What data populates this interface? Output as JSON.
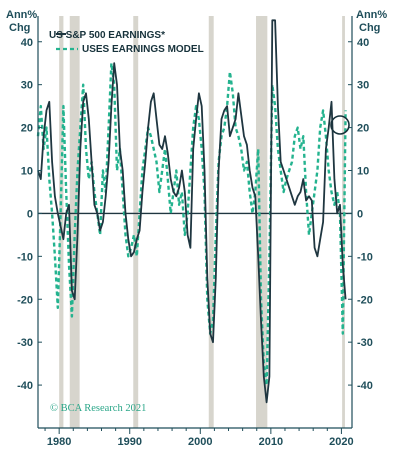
{
  "chart_data": {
    "type": "line",
    "title": "",
    "units_label": [
      "Ann%",
      "Chg"
    ],
    "xlabel": "",
    "ylabel": "",
    "xlim": [
      1977,
      2021.5
    ],
    "ylim": [
      -50,
      46
    ],
    "yticks": [
      40,
      30,
      20,
      10,
      0,
      -10,
      -20,
      -30,
      -40
    ],
    "xticks": [
      1980,
      1990,
      2000,
      2010,
      2020
    ],
    "recessions": [
      [
        1980.0,
        1980.6
      ],
      [
        1981.5,
        1982.9
      ],
      [
        1990.5,
        1991.2
      ],
      [
        2001.2,
        2001.9
      ],
      [
        2007.9,
        2009.5
      ],
      [
        2020.1,
        2020.5
      ]
    ],
    "legend": [
      "US S&P 500 EARNINGS*",
      "USES EARNINGS MODEL"
    ],
    "credit": "© BCA Research 2021",
    "colors": {
      "actual": "#1f3640",
      "model": "#24b38f",
      "recession": "#d7d5cd",
      "axis": "#1f4e5a",
      "zero_line": "#1f3640"
    },
    "series": [
      {
        "name": "US S&P 500 EARNINGS*",
        "style": "solid",
        "x": [
          1977.0,
          1977.4,
          1977.8,
          1978.2,
          1978.6,
          1979.0,
          1979.4,
          1979.8,
          1980.2,
          1980.6,
          1981.0,
          1981.4,
          1981.8,
          1982.2,
          1982.6,
          1983.0,
          1983.4,
          1983.8,
          1984.2,
          1984.6,
          1985.0,
          1985.4,
          1985.8,
          1986.2,
          1986.6,
          1987.0,
          1987.4,
          1987.8,
          1988.2,
          1988.6,
          1989.0,
          1989.4,
          1989.8,
          1990.2,
          1990.6,
          1991.0,
          1991.4,
          1991.8,
          1992.2,
          1992.6,
          1993.0,
          1993.4,
          1993.8,
          1994.2,
          1994.6,
          1995.0,
          1995.4,
          1995.8,
          1996.2,
          1996.6,
          1997.0,
          1997.4,
          1997.8,
          1998.2,
          1998.6,
          1999.0,
          1999.4,
          1999.8,
          2000.2,
          2000.6,
          2001.0,
          2001.4,
          2001.8,
          2002.2,
          2002.6,
          2003.0,
          2003.4,
          2003.8,
          2004.2,
          2004.6,
          2005.0,
          2005.4,
          2005.8,
          2006.2,
          2006.6,
          2007.0,
          2007.4,
          2007.8,
          2008.2,
          2008.6,
          2009.0,
          2009.4,
          2009.8,
          2010.2,
          2010.6,
          2011.0,
          2011.4,
          2011.8,
          2012.2,
          2012.6,
          2013.0,
          2013.4,
          2013.8,
          2014.2,
          2014.6,
          2015.0,
          2015.4,
          2015.8,
          2016.2,
          2016.6,
          2017.0,
          2017.4,
          2017.8,
          2018.2,
          2018.6,
          2019.0,
          2019.4,
          2019.8,
          2020.2,
          2020.6
        ],
        "y": [
          10,
          8,
          18,
          24,
          26,
          12,
          4,
          0,
          -3,
          -6,
          0,
          2,
          -18,
          -20,
          -5,
          15,
          26,
          28,
          22,
          12,
          2,
          0,
          -4,
          -2,
          4,
          12,
          25,
          35,
          30,
          15,
          10,
          0,
          -6,
          -10,
          -9,
          -6,
          -4,
          5,
          12,
          20,
          26,
          28,
          22,
          16,
          15,
          18,
          14,
          8,
          5,
          4,
          6,
          10,
          5,
          -5,
          -8,
          15,
          22,
          28,
          25,
          10,
          -15,
          -28,
          -30,
          -15,
          10,
          22,
          24,
          25,
          18,
          20,
          22,
          28,
          23,
          18,
          16,
          10,
          6,
          4,
          -10,
          -25,
          -38,
          -44,
          -38,
          45,
          45,
          25,
          12,
          10,
          8,
          6,
          4,
          2,
          4,
          5,
          8,
          3,
          4,
          3,
          -8,
          -10,
          -6,
          -2,
          15,
          20,
          26,
          8,
          0,
          2,
          -12,
          -20
        ]
      },
      {
        "name": "USES EARNINGS MODEL",
        "style": "dashed",
        "x": [
          1977.0,
          1977.4,
          1977.8,
          1978.2,
          1978.6,
          1979.0,
          1979.4,
          1979.8,
          1980.2,
          1980.6,
          1981.0,
          1981.4,
          1981.8,
          1982.2,
          1982.6,
          1983.0,
          1983.4,
          1983.8,
          1984.2,
          1984.6,
          1985.0,
          1985.4,
          1985.8,
          1986.2,
          1986.6,
          1987.0,
          1987.4,
          1987.8,
          1988.2,
          1988.6,
          1989.0,
          1989.4,
          1989.8,
          1990.2,
          1990.6,
          1991.0,
          1991.4,
          1991.8,
          1992.2,
          1992.6,
          1993.0,
          1993.4,
          1993.8,
          1994.2,
          1994.6,
          1995.0,
          1995.4,
          1995.8,
          1996.2,
          1996.6,
          1997.0,
          1997.4,
          1997.8,
          1998.2,
          1998.6,
          1999.0,
          1999.4,
          1999.8,
          2000.2,
          2000.6,
          2001.0,
          2001.4,
          2001.8,
          2002.2,
          2002.6,
          2003.0,
          2003.4,
          2003.8,
          2004.2,
          2004.6,
          2005.0,
          2005.4,
          2005.8,
          2006.2,
          2006.6,
          2007.0,
          2007.4,
          2007.8,
          2008.2,
          2008.6,
          2009.0,
          2009.4,
          2009.8,
          2010.2,
          2010.6,
          2011.0,
          2011.4,
          2011.8,
          2012.2,
          2012.6,
          2013.0,
          2013.4,
          2013.8,
          2014.2,
          2014.6,
          2015.0,
          2015.4,
          2015.8,
          2016.2,
          2016.6,
          2017.0,
          2017.4,
          2017.8,
          2018.2,
          2018.6,
          2019.0,
          2019.4,
          2019.8,
          2020.2,
          2020.6
        ],
        "y": [
          18,
          25,
          15,
          20,
          8,
          0,
          -10,
          -22,
          0,
          25,
          5,
          -12,
          -24,
          -5,
          10,
          20,
          30,
          15,
          8,
          12,
          5,
          0,
          -5,
          10,
          5,
          20,
          35,
          30,
          10,
          15,
          5,
          -5,
          -10,
          -8,
          -5,
          -10,
          0,
          10,
          15,
          20,
          18,
          15,
          12,
          5,
          10,
          15,
          8,
          0,
          5,
          10,
          2,
          5,
          -5,
          0,
          10,
          20,
          25,
          22,
          15,
          5,
          -20,
          -28,
          -25,
          -5,
          12,
          18,
          20,
          25,
          33,
          28,
          20,
          18,
          15,
          10,
          12,
          5,
          0,
          5,
          15,
          -20,
          -35,
          -40,
          -10,
          30,
          25,
          15,
          10,
          5,
          8,
          10,
          12,
          18,
          20,
          15,
          18,
          5,
          -5,
          0,
          5,
          10,
          20,
          24,
          18,
          10,
          5,
          2,
          5,
          0,
          -28,
          24
        ]
      }
    ]
  }
}
